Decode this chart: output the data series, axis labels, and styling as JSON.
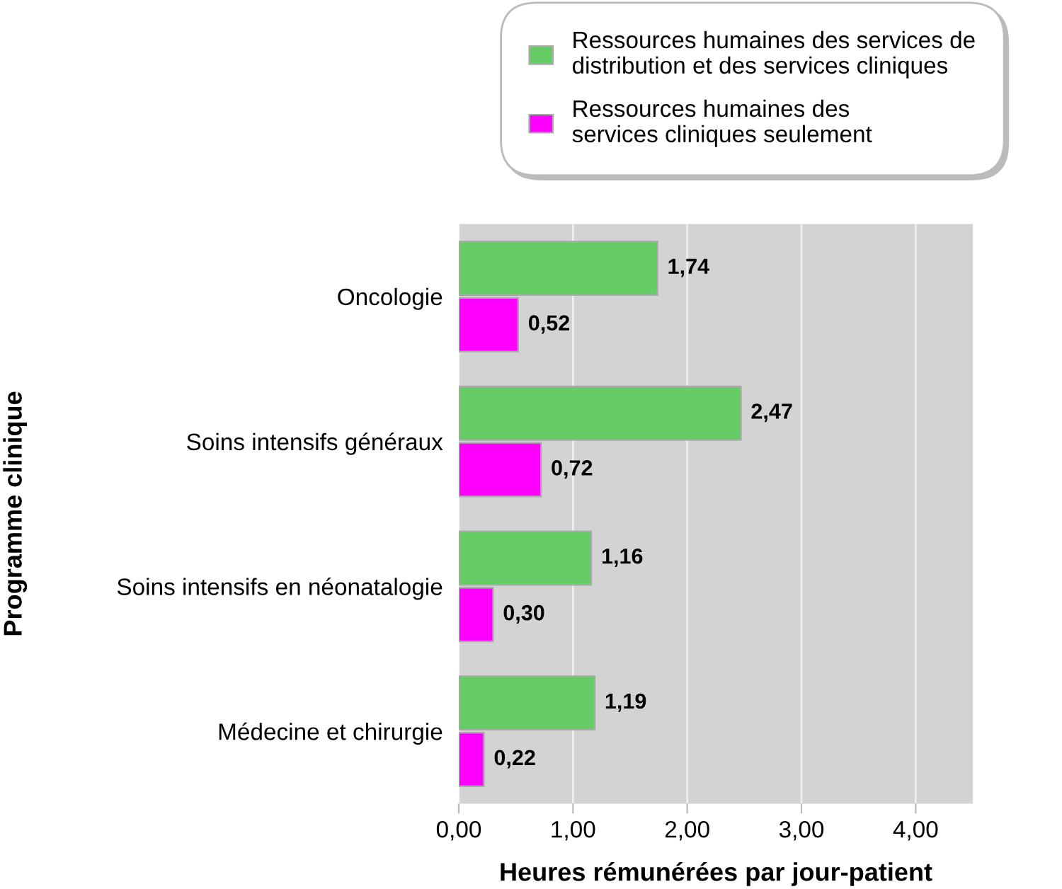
{
  "chart_data": {
    "type": "bar",
    "orientation": "horizontal",
    "ylabel": "Programme clinique",
    "xlabel": "Heures rémunérées par jour-patient",
    "categories": [
      "Oncologie",
      "Soins intensifs généraux",
      "Soins intensifs en néonatalogie",
      "Médecine et chirurgie"
    ],
    "series": [
      {
        "name": "Ressources humaines des services de\ndistribution et des services cliniques",
        "color": "#66cc66",
        "values": [
          1.74,
          2.47,
          1.16,
          1.19
        ],
        "value_labels": [
          "1,74",
          "2,47",
          "1,16",
          "1,19"
        ]
      },
      {
        "name": "Ressources humaines des\nservices cliniques seulement",
        "color": "#ff00ff",
        "values": [
          0.52,
          0.72,
          0.3,
          0.22
        ],
        "value_labels": [
          "0,52",
          "0,72",
          "0,30",
          "0,22"
        ]
      }
    ],
    "xlim": [
      0,
      4.5
    ],
    "xticks": [
      {
        "value": 0,
        "label": "0,00"
      },
      {
        "value": 1,
        "label": "1,00"
      },
      {
        "value": 2,
        "label": "2,00"
      },
      {
        "value": 3,
        "label": "3,00"
      },
      {
        "value": 4,
        "label": "4,00"
      }
    ],
    "grid": "x",
    "legend": "top right"
  }
}
